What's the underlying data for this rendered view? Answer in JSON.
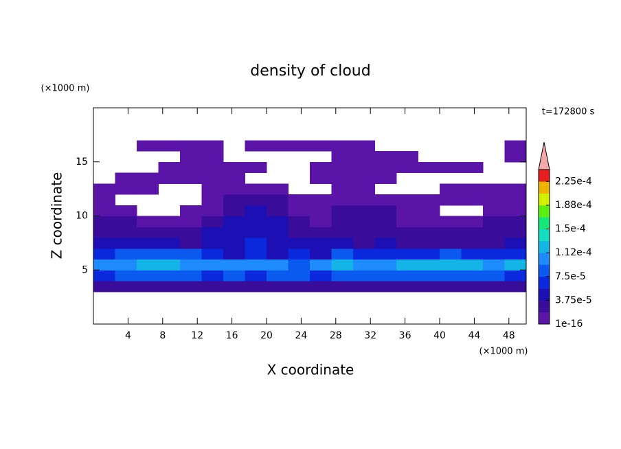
{
  "chart_data": {
    "type": "contour",
    "title": "density of cloud",
    "x_label": "X coordinate",
    "y_label": "Z coordinate",
    "x_unit": "(×1000 m)",
    "y_unit": "(×1000 m)",
    "annotation": "t=172800 s",
    "xlim": [
      0,
      50
    ],
    "xticks": [
      4,
      8,
      12,
      16,
      20,
      24,
      28,
      32,
      36,
      40,
      44,
      48
    ],
    "ylim": [
      0,
      20
    ],
    "yticks": [
      5,
      10,
      15
    ],
    "x": [
      1.25,
      3.75,
      6.25,
      8.75,
      11.25,
      13.75,
      16.25,
      18.75,
      21.25,
      23.75,
      26.25,
      28.75,
      31.25,
      33.75,
      36.25,
      38.75,
      41.25,
      43.75,
      46.25,
      48.75
    ],
    "y": [
      0.5,
      1.5,
      2.5,
      3.5,
      4.5,
      5.5,
      6.5,
      7.5,
      8.5,
      9.5,
      10.5,
      11.5,
      12.5,
      13.5,
      14.5,
      15.5,
      16.5,
      17.5,
      18.5,
      19.5
    ],
    "values": [
      [
        null,
        null,
        null,
        null,
        null,
        null,
        null,
        null,
        null,
        null,
        null,
        null,
        null,
        null,
        null,
        null,
        null,
        null,
        null,
        null
      ],
      [
        null,
        null,
        null,
        null,
        null,
        null,
        null,
        null,
        null,
        null,
        null,
        null,
        null,
        null,
        null,
        null,
        null,
        null,
        null,
        null
      ],
      [
        null,
        null,
        null,
        null,
        null,
        null,
        null,
        null,
        null,
        null,
        null,
        null,
        null,
        null,
        null,
        null,
        null,
        null,
        null,
        null
      ],
      [
        2.5e-05,
        2.5e-05,
        2.5e-05,
        2.5e-05,
        2.5e-05,
        2.5e-05,
        2.5e-05,
        2.5e-05,
        2.5e-05,
        2.5e-05,
        2.5e-05,
        2.5e-05,
        2.5e-05,
        2.5e-05,
        2.5e-05,
        2.5e-05,
        2.5e-05,
        2.5e-05,
        2.5e-05,
        2.5e-05
      ],
      [
        6e-05,
        8e-05,
        8e-05,
        8e-05,
        8e-05,
        6e-05,
        8e-05,
        6e-05,
        8e-05,
        8e-05,
        6e-05,
        8e-05,
        8e-05,
        8e-05,
        8e-05,
        8e-05,
        8e-05,
        8e-05,
        8e-05,
        6e-05
      ],
      [
        0.0001,
        0.00011,
        0.00013,
        0.00013,
        0.00011,
        0.0001,
        0.0001,
        0.00011,
        0.00011,
        8e-05,
        0.0001,
        0.00012,
        0.0001,
        0.00011,
        0.00012,
        0.00013,
        0.00013,
        0.00012,
        0.00011,
        0.00012
      ],
      [
        6e-05,
        8e-05,
        9e-05,
        8e-05,
        8e-05,
        6e-05,
        5e-05,
        6e-05,
        5e-05,
        6e-05,
        5e-05,
        8e-05,
        6e-05,
        6e-05,
        6e-05,
        6e-05,
        8e-05,
        6e-05,
        6e-05,
        6e-05
      ],
      [
        4e-05,
        4e-05,
        4e-05,
        4e-05,
        3e-05,
        5e-05,
        5e-05,
        6e-05,
        5e-05,
        4e-05,
        4e-05,
        4e-05,
        3e-05,
        4e-05,
        3e-05,
        3e-05,
        3e-05,
        3e-05,
        3e-05,
        4e-05
      ],
      [
        3e-05,
        2.5e-05,
        3e-05,
        3e-05,
        2.5e-05,
        4e-05,
        5e-05,
        5e-05,
        4e-05,
        3e-05,
        2.5e-05,
        3e-05,
        2.5e-05,
        2.5e-05,
        2.5e-05,
        2.5e-05,
        2e-05,
        2e-05,
        2e-05,
        3e-05
      ],
      [
        2.5e-05,
        2e-05,
        1e-05,
        1e-05,
        1e-05,
        2.5e-05,
        4e-05,
        5e-05,
        4e-05,
        2.5e-05,
        1e-05,
        2.5e-05,
        2.5e-05,
        2e-05,
        1e-05,
        1e-05,
        1e-05,
        1e-05,
        2e-05,
        2.5e-05
      ],
      [
        1e-05,
        1e-05,
        null,
        null,
        1e-05,
        1e-05,
        2.5e-05,
        4e-05,
        2.5e-05,
        1e-05,
        1e-05,
        2e-05,
        2.5e-05,
        2e-05,
        1e-05,
        1e-05,
        null,
        null,
        1e-05,
        1e-05
      ],
      [
        1e-05,
        null,
        null,
        null,
        null,
        1e-05,
        2e-05,
        2.5e-05,
        2e-05,
        1e-05,
        1e-05,
        1e-05,
        1e-05,
        1e-05,
        1e-05,
        1e-05,
        1e-05,
        1e-05,
        1e-05,
        1e-05
      ],
      [
        1e-05,
        1e-05,
        1e-05,
        null,
        null,
        1e-05,
        1e-05,
        1e-05,
        1e-05,
        null,
        null,
        1e-05,
        1e-05,
        null,
        null,
        null,
        1e-05,
        1e-05,
        1e-05,
        1e-05
      ],
      [
        null,
        1e-05,
        1e-05,
        1e-05,
        1e-05,
        1e-05,
        1e-05,
        null,
        null,
        null,
        1e-05,
        1e-05,
        1e-05,
        1e-05,
        null,
        null,
        null,
        null,
        null,
        null
      ],
      [
        null,
        null,
        null,
        1e-05,
        1e-05,
        1e-05,
        1e-05,
        1e-05,
        null,
        null,
        1e-05,
        1e-05,
        1e-05,
        1e-05,
        1e-05,
        1e-05,
        1e-05,
        1e-05,
        null,
        null
      ],
      [
        null,
        null,
        null,
        null,
        1e-05,
        1e-05,
        null,
        null,
        null,
        null,
        null,
        1e-05,
        1e-05,
        1e-05,
        1e-05,
        null,
        null,
        null,
        null,
        1e-05
      ],
      [
        null,
        null,
        1e-05,
        1e-05,
        1e-05,
        1e-05,
        null,
        1e-05,
        1e-05,
        1e-05,
        1e-05,
        1e-05,
        1e-05,
        null,
        null,
        null,
        null,
        null,
        null,
        1e-05
      ],
      [
        null,
        null,
        null,
        null,
        null,
        null,
        null,
        null,
        null,
        null,
        null,
        null,
        null,
        null,
        null,
        null,
        null,
        null,
        null,
        null
      ],
      [
        null,
        null,
        null,
        null,
        null,
        null,
        null,
        null,
        null,
        null,
        null,
        null,
        null,
        null,
        null,
        null,
        null,
        null,
        null,
        null
      ],
      [
        null,
        null,
        null,
        null,
        null,
        null,
        null,
        null,
        null,
        null,
        null,
        null,
        null,
        null,
        null,
        null,
        null,
        null,
        null,
        null
      ]
    ],
    "clim": [
      1e-16,
      0.00024375
    ],
    "cticks": [
      1e-16,
      {
        "value": 3.75e-05,
        "label": "3.75e-5"
      },
      {
        "value": 7.5e-05,
        "label": "7.5e-5"
      },
      {
        "value": 0.0001125,
        "label": "1.12e-4"
      },
      {
        "value": 0.00015,
        "label": "1.5e-4"
      },
      {
        "value": 0.0001875,
        "label": "1.88e-4"
      },
      {
        "value": 0.000225,
        "label": "2.25e-4"
      }
    ],
    "colors": [
      "#5a14a8",
      "#3a0c9a",
      "#1c10b4",
      "#0a28dc",
      "#0a5af0",
      "#1e8cff",
      "#14b4e6",
      "#14dcbe",
      "#14e678",
      "#5af014",
      "#d2f000",
      "#f0b400",
      "#e61e1e"
    ],
    "extend_color": "#f4a8a8"
  }
}
